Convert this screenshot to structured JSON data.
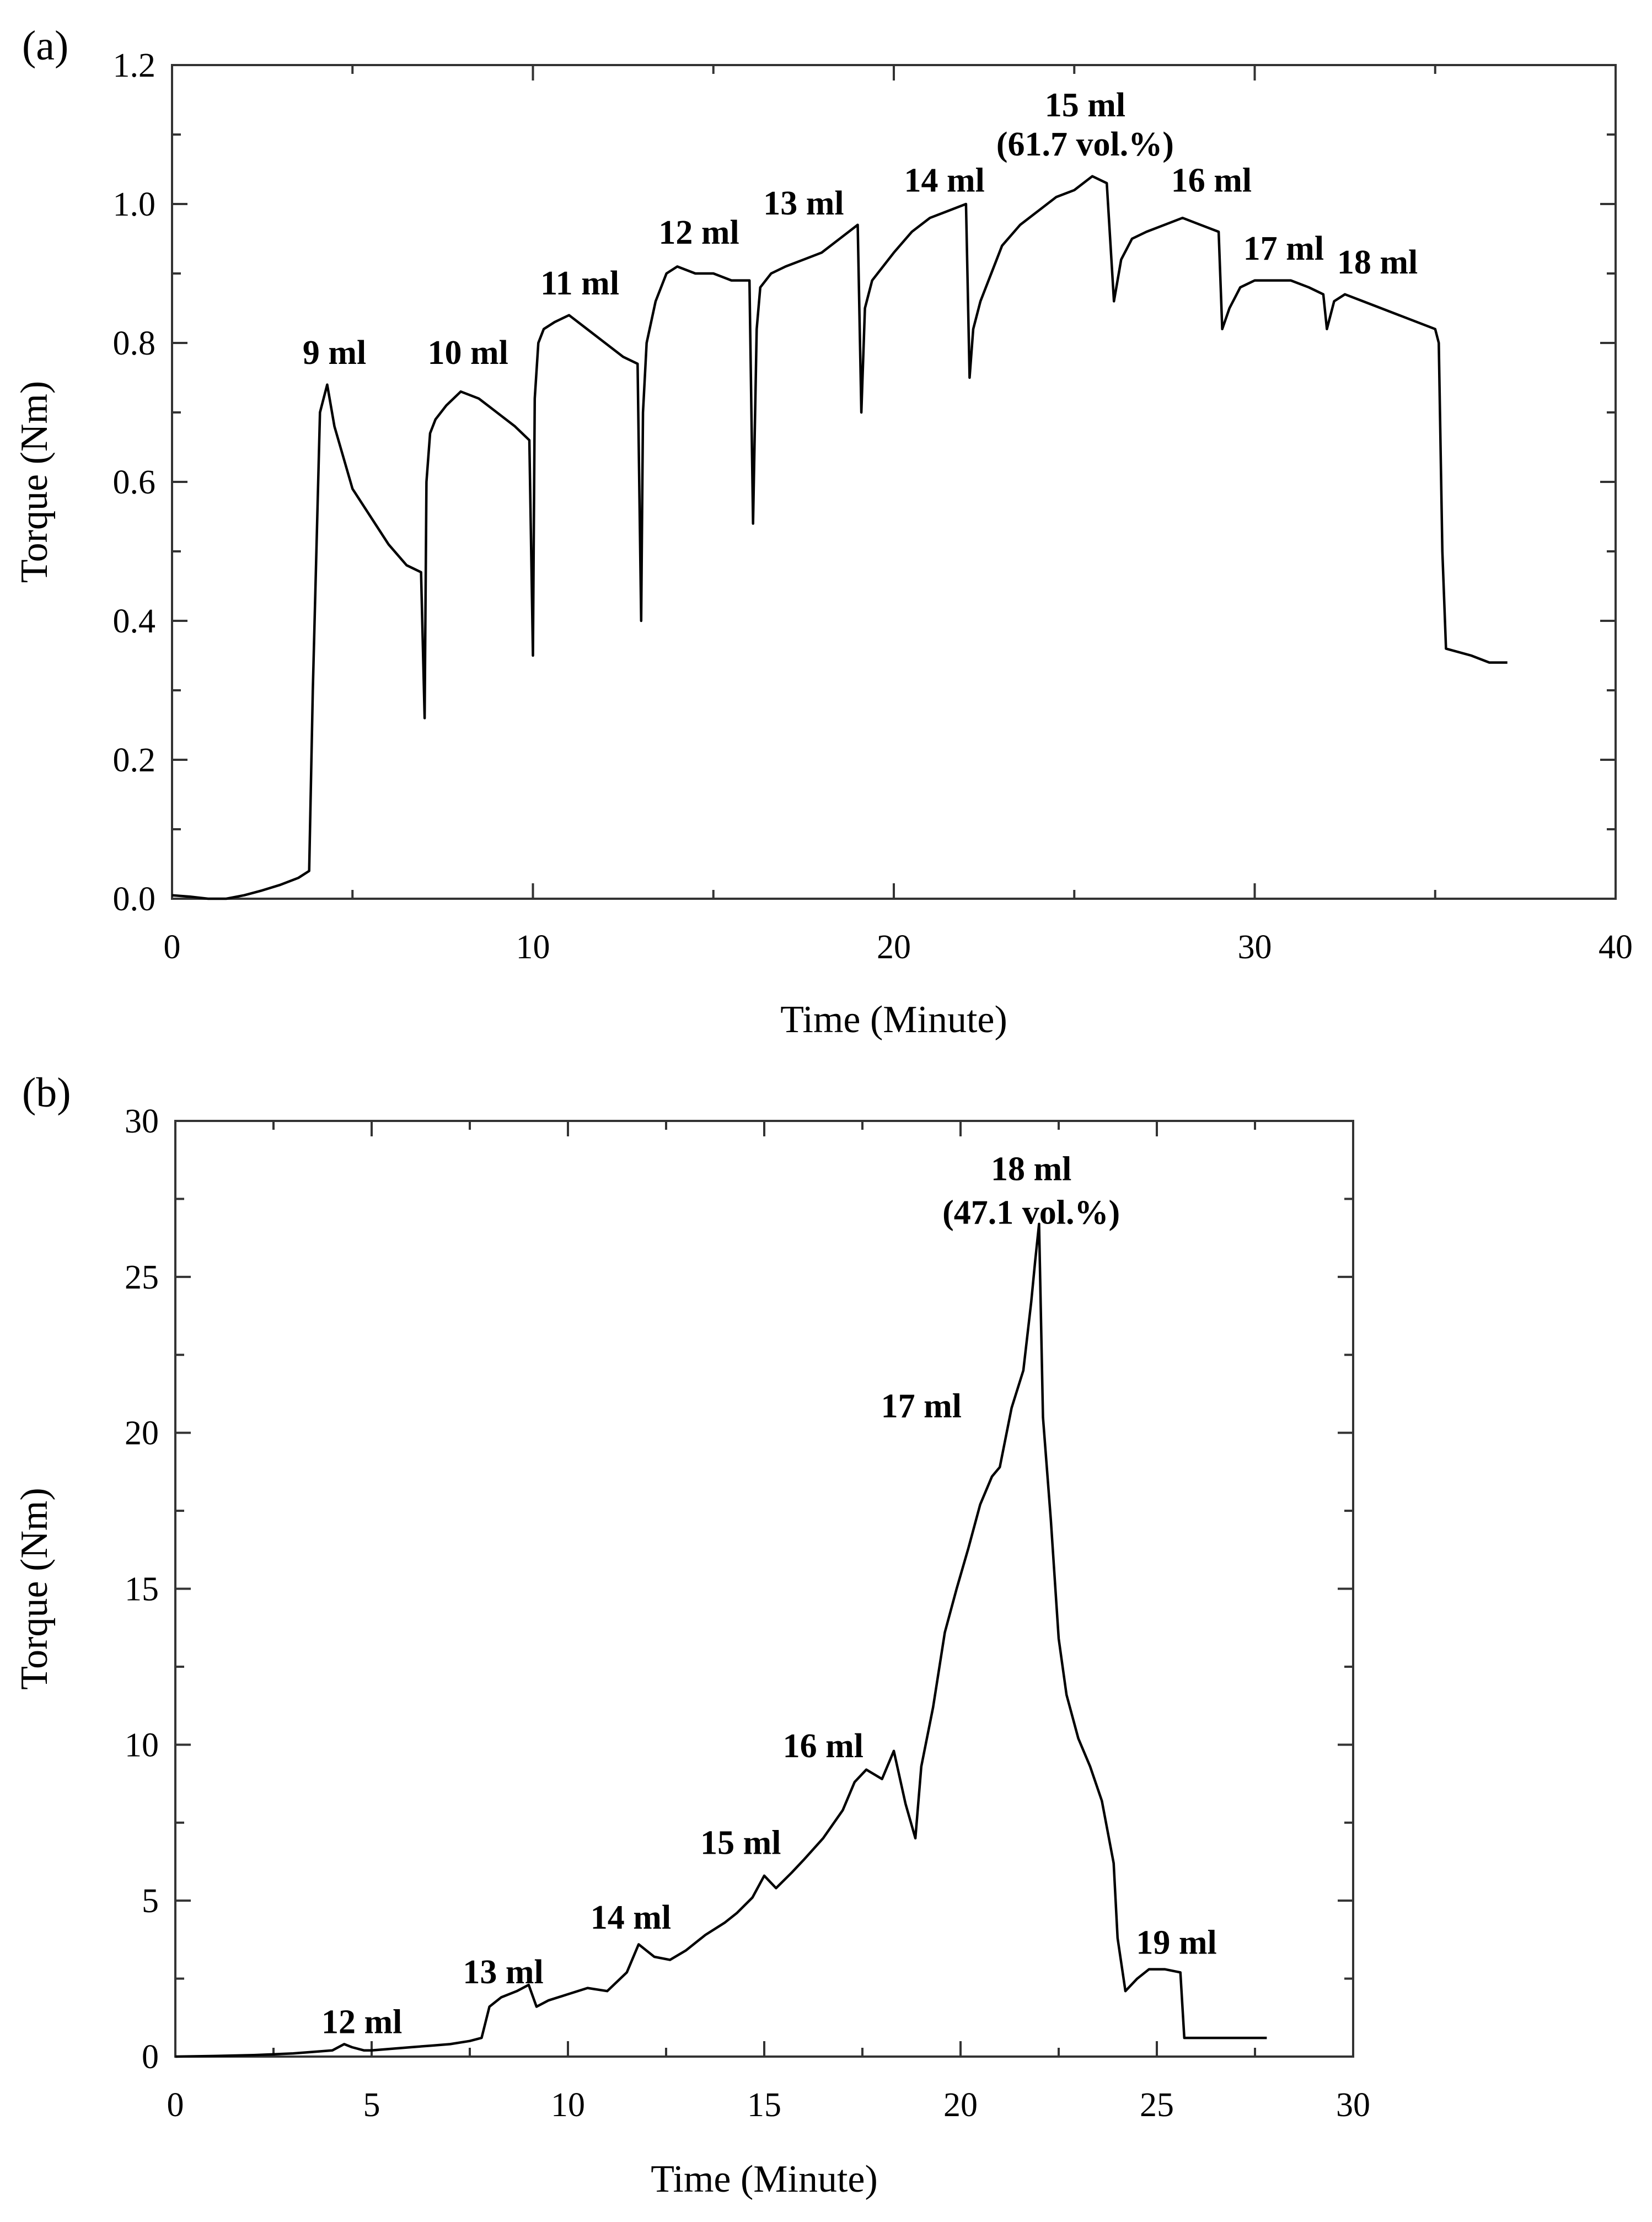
{
  "chart_data": [
    {
      "type": "line",
      "panel_label": "(a)",
      "xlabel": "Time (Minute)",
      "ylabel": "Torque (Nm)",
      "xlim": [
        0,
        40
      ],
      "ylim": [
        0,
        1.2
      ],
      "xticks": [
        0,
        10,
        20,
        30,
        40
      ],
      "yticks": [
        0.0,
        0.2,
        0.4,
        0.6,
        0.8,
        1.0,
        1.2
      ],
      "ytick_labels": [
        "0.0",
        "0.2",
        "0.4",
        "0.6",
        "0.8",
        "1.0",
        "1.2"
      ],
      "grid": false,
      "series": [
        {
          "x": [
            0,
            0.5,
            1.0,
            1.5,
            2.0,
            2.5,
            3.0,
            3.5,
            3.8,
            3.9,
            4.1,
            4.3,
            4.5,
            5.0,
            5.5,
            6.0,
            6.5,
            6.9,
            7.0,
            7.05,
            7.15,
            7.3,
            7.6,
            8.0,
            8.5,
            9.0,
            9.5,
            9.9,
            10.0,
            10.05,
            10.15,
            10.3,
            10.6,
            11.0,
            11.5,
            12.0,
            12.5,
            12.9,
            13.0,
            13.05,
            13.15,
            13.4,
            13.7,
            14.0,
            14.5,
            15.0,
            15.5,
            16.0,
            16.1,
            16.2,
            16.3,
            16.6,
            17.0,
            17.5,
            18.0,
            18.5,
            19.0,
            19.1,
            19.2,
            19.4,
            19.7,
            20.0,
            20.5,
            21.0,
            21.5,
            22.0,
            22.1,
            22.2,
            22.4,
            22.7,
            23.0,
            23.5,
            24.0,
            24.5,
            25.0,
            25.5,
            25.9,
            26.1,
            26.3,
            26.6,
            27.0,
            27.5,
            28.0,
            28.5,
            29.0,
            29.1,
            29.3,
            29.6,
            30.0,
            30.5,
            31.0,
            31.5,
            31.9,
            32.0,
            32.2,
            32.5,
            33.0,
            33.5,
            34.0,
            34.5,
            35.0,
            35.1,
            35.2,
            35.3,
            36.0,
            36.5,
            37.0
          ],
          "y": [
            0.005,
            0.003,
            0.0,
            0.0,
            0.005,
            0.012,
            0.02,
            0.03,
            0.04,
            0.3,
            0.7,
            0.74,
            0.68,
            0.59,
            0.55,
            0.51,
            0.48,
            0.47,
            0.26,
            0.6,
            0.67,
            0.69,
            0.71,
            0.73,
            0.72,
            0.7,
            0.68,
            0.66,
            0.35,
            0.72,
            0.8,
            0.82,
            0.83,
            0.84,
            0.82,
            0.8,
            0.78,
            0.77,
            0.4,
            0.7,
            0.8,
            0.86,
            0.9,
            0.91,
            0.9,
            0.9,
            0.89,
            0.89,
            0.54,
            0.82,
            0.88,
            0.9,
            0.91,
            0.92,
            0.93,
            0.95,
            0.97,
            0.7,
            0.85,
            0.89,
            0.91,
            0.93,
            0.96,
            0.98,
            0.99,
            1.0,
            0.75,
            0.82,
            0.86,
            0.9,
            0.94,
            0.97,
            0.99,
            1.01,
            1.02,
            1.04,
            1.03,
            0.86,
            0.92,
            0.95,
            0.96,
            0.97,
            0.98,
            0.97,
            0.96,
            0.82,
            0.85,
            0.88,
            0.89,
            0.89,
            0.89,
            0.88,
            0.87,
            0.82,
            0.86,
            0.87,
            0.86,
            0.85,
            0.84,
            0.83,
            0.82,
            0.8,
            0.5,
            0.36,
            0.35,
            0.34,
            0.34
          ]
        }
      ],
      "annotations": [
        {
          "text": "9 ml",
          "x": 4.5,
          "y": 0.77
        },
        {
          "text": "10 ml",
          "x": 8.2,
          "y": 0.77
        },
        {
          "text": "11 ml",
          "x": 11.3,
          "y": 0.87
        },
        {
          "text": "12 ml",
          "x": 14.6,
          "y": 0.943
        },
        {
          "text": "13 ml",
          "x": 17.5,
          "y": 0.985
        },
        {
          "text": "14 ml",
          "x": 21.4,
          "y": 1.018
        },
        {
          "text": "15 ml",
          "x": 25.3,
          "y": 1.126
        },
        {
          "text": "(61.7 vol.%)",
          "x": 25.3,
          "y": 1.07
        },
        {
          "text": "16 ml",
          "x": 28.8,
          "y": 1.018
        },
        {
          "text": "17 ml",
          "x": 30.8,
          "y": 0.92
        },
        {
          "text": "18 ml",
          "x": 33.4,
          "y": 0.9
        }
      ]
    },
    {
      "type": "line",
      "panel_label": "(b)",
      "xlabel": "Time (Minute)",
      "ylabel": "Torque (Nm)",
      "xlim": [
        0,
        30
      ],
      "ylim": [
        0,
        30
      ],
      "xticks": [
        0,
        5,
        10,
        15,
        20,
        25,
        30
      ],
      "yticks": [
        0,
        5,
        10,
        15,
        20,
        25,
        30
      ],
      "ytick_labels": [
        "0",
        "5",
        "10",
        "15",
        "20",
        "25",
        "30"
      ],
      "grid": false,
      "series": [
        {
          "x": [
            0,
            1,
            2,
            3,
            4,
            4.3,
            4.5,
            4.8,
            5.0,
            5.5,
            6.0,
            6.5,
            7.0,
            7.5,
            7.8,
            8.0,
            8.3,
            8.7,
            9.0,
            9.2,
            9.5,
            10.0,
            10.5,
            11.0,
            11.5,
            11.8,
            12.2,
            12.6,
            13.0,
            13.5,
            14.0,
            14.3,
            14.7,
            15.0,
            15.3,
            15.7,
            16.0,
            16.5,
            17.0,
            17.3,
            17.6,
            18.0,
            18.3,
            18.6,
            18.85,
            19.0,
            19.3,
            19.6,
            19.9,
            20.2,
            20.5,
            20.8,
            21.0,
            21.3,
            21.6,
            21.8,
            21.9,
            22.0,
            22.1,
            22.3,
            22.5,
            22.7,
            23.0,
            23.3,
            23.6,
            23.9,
            24.0,
            24.2,
            24.5,
            24.8,
            25.2,
            25.6,
            25.7,
            26.0,
            27.0,
            27.8
          ],
          "y": [
            0,
            0.02,
            0.05,
            0.1,
            0.2,
            0.4,
            0.3,
            0.2,
            0.2,
            0.25,
            0.3,
            0.35,
            0.4,
            0.5,
            0.6,
            1.6,
            1.9,
            2.1,
            2.3,
            1.6,
            1.8,
            2.0,
            2.2,
            2.1,
            2.7,
            3.6,
            3.2,
            3.1,
            3.4,
            3.9,
            4.3,
            4.6,
            5.1,
            5.8,
            5.4,
            5.9,
            6.3,
            7.0,
            7.9,
            8.8,
            9.2,
            8.9,
            9.8,
            8.1,
            7.0,
            9.3,
            11.2,
            13.6,
            15.0,
            16.3,
            17.7,
            18.6,
            18.9,
            20.8,
            22.0,
            24.2,
            25.5,
            26.7,
            20.5,
            17.2,
            13.4,
            11.6,
            10.2,
            9.3,
            8.2,
            6.2,
            3.8,
            2.1,
            2.5,
            2.8,
            2.8,
            2.7,
            0.6,
            0.6,
            0.6,
            0.6
          ]
        }
      ],
      "annotations": [
        {
          "text": "12 ml",
          "x": 4.75,
          "y": 0.75
        },
        {
          "text": "13 ml",
          "x": 8.35,
          "y": 2.35
        },
        {
          "text": "14 ml",
          "x": 11.6,
          "y": 4.1
        },
        {
          "text": "15 ml",
          "x": 14.4,
          "y": 6.5
        },
        {
          "text": "16 ml",
          "x": 16.5,
          "y": 9.6
        },
        {
          "text": "17 ml",
          "x": 19.0,
          "y": 20.5
        },
        {
          "text": "18 ml",
          "x": 21.8,
          "y": 28.1
        },
        {
          "text": "(47.1 vol.%)",
          "x": 21.8,
          "y": 26.7
        },
        {
          "text": "19 ml",
          "x": 25.5,
          "y": 3.3
        }
      ]
    }
  ]
}
